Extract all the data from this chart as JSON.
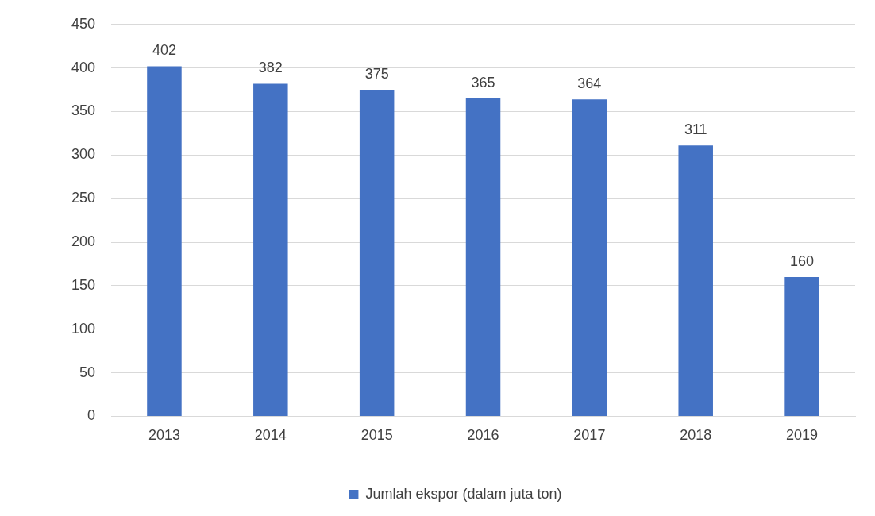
{
  "chart_data": {
    "type": "bar",
    "categories": [
      "2013",
      "2014",
      "2015",
      "2016",
      "2017",
      "2018",
      "2019"
    ],
    "series": [
      {
        "name": "Jumlah ekspor (dalam juta ton)",
        "color": "#4472c4",
        "values": [
          402,
          382,
          375,
          365,
          364,
          311,
          160
        ]
      }
    ],
    "ylim": [
      0,
      450
    ],
    "yticks": [
      0,
      50,
      100,
      150,
      200,
      250,
      300,
      350,
      400,
      450
    ],
    "grid": "y",
    "legend": "bottom",
    "data_labels": true
  }
}
